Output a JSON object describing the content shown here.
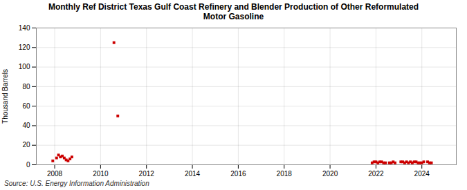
{
  "chart_data": {
    "type": "scatter",
    "title": "Monthly Ref District Texas Gulf Coast Refinery and Blender Production of Other Reformulated\nMotor Gasoline",
    "ylabel": "Thousand Barrels",
    "source": "Source: U.S. Energy Information Administration",
    "color": "#cc0000",
    "marker": "square",
    "grid": true,
    "xlim": [
      2007.2,
      2025.5
    ],
    "ylim": [
      0,
      140
    ],
    "xticks": [
      2008,
      2010,
      2012,
      2014,
      2016,
      2018,
      2020,
      2022,
      2024
    ],
    "yticks": [
      0,
      20,
      40,
      60,
      80,
      100,
      120,
      140
    ],
    "x": [
      2007.917,
      2008.083,
      2008.167,
      2008.25,
      2008.333,
      2008.417,
      2008.5,
      2008.583,
      2008.667,
      2008.75,
      2010.583,
      2010.75,
      2021.833,
      2021.917,
      2022.0,
      2022.083,
      2022.167,
      2022.25,
      2022.333,
      2022.417,
      2022.583,
      2022.667,
      2022.75,
      2022.833,
      2023.083,
      2023.167,
      2023.25,
      2023.333,
      2023.417,
      2023.5,
      2023.583,
      2023.667,
      2023.75,
      2023.833,
      2023.917,
      2024.0,
      2024.083,
      2024.25,
      2024.333,
      2024.417
    ],
    "values": [
      4,
      7,
      10,
      8,
      9,
      7,
      5,
      4,
      6,
      8,
      125,
      50,
      2,
      3,
      3,
      2,
      3,
      3,
      2,
      2,
      2,
      2,
      3,
      2,
      3,
      3,
      2,
      3,
      2,
      3,
      2,
      3,
      3,
      2,
      2,
      2,
      3,
      3,
      2,
      2
    ]
  }
}
